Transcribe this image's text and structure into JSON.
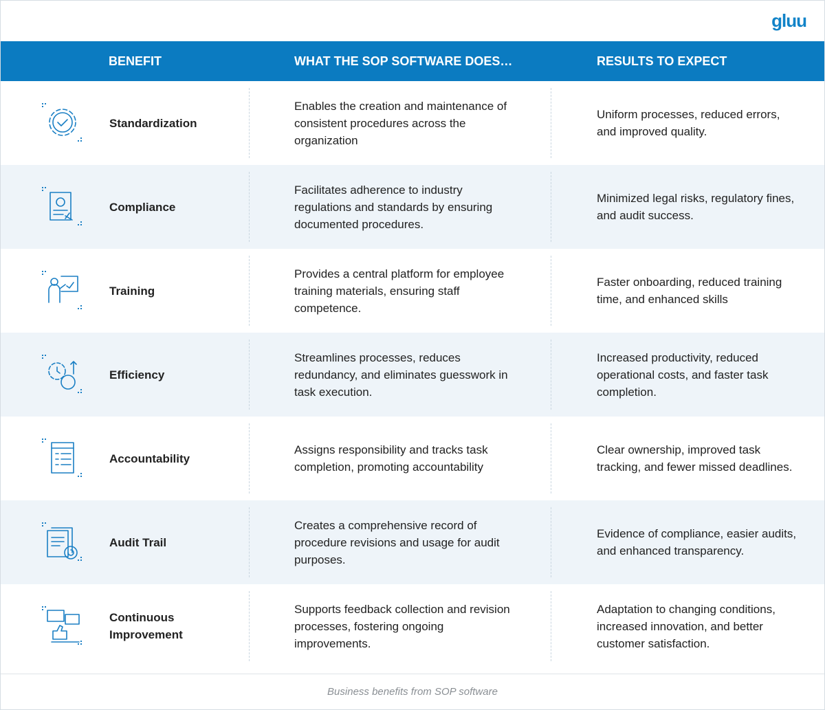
{
  "logo": "gluu",
  "table": {
    "headers": [
      "BENEFIT",
      "WHAT THE SOP SOFTWARE DOES…",
      "RESULTS TO EXPECT"
    ],
    "rows": [
      [
        "Standardization",
        "Enables the creation and maintenance of consistent procedures across the organization",
        "Uniform processes, reduced errors, and improved quality."
      ],
      [
        "Compliance",
        "Facilitates adherence to industry regulations and standards by ensuring documented procedures.",
        "Minimized legal risks, regulatory fines, and audit success."
      ],
      [
        "Training",
        "Provides a central platform for employee training materials, ensuring staff competence.",
        "Faster onboarding, reduced training time, and enhanced skills"
      ],
      [
        "Efficiency",
        "Streamlines processes, reduces redundancy, and eliminates guesswork in task execution.",
        "Increased productivity, reduced operational costs, and faster task completion."
      ],
      [
        "Accountability",
        "Assigns responsibility and tracks task completion, promoting accountability",
        "Clear ownership, improved task tracking, and fewer missed deadlines."
      ],
      [
        "Audit Trail",
        "Creates a comprehensive record of procedure revisions and usage for audit purposes.",
        "Evidence of compliance, easier audits, and enhanced transparency."
      ],
      [
        "Continuous Improvement",
        "Supports feedback collection and revision processes, fostering ongoing improvements.",
        "Adaptation to changing conditions, increased innovation, and better customer satisfaction."
      ]
    ]
  },
  "caption": "Business benefits from SOP software"
}
